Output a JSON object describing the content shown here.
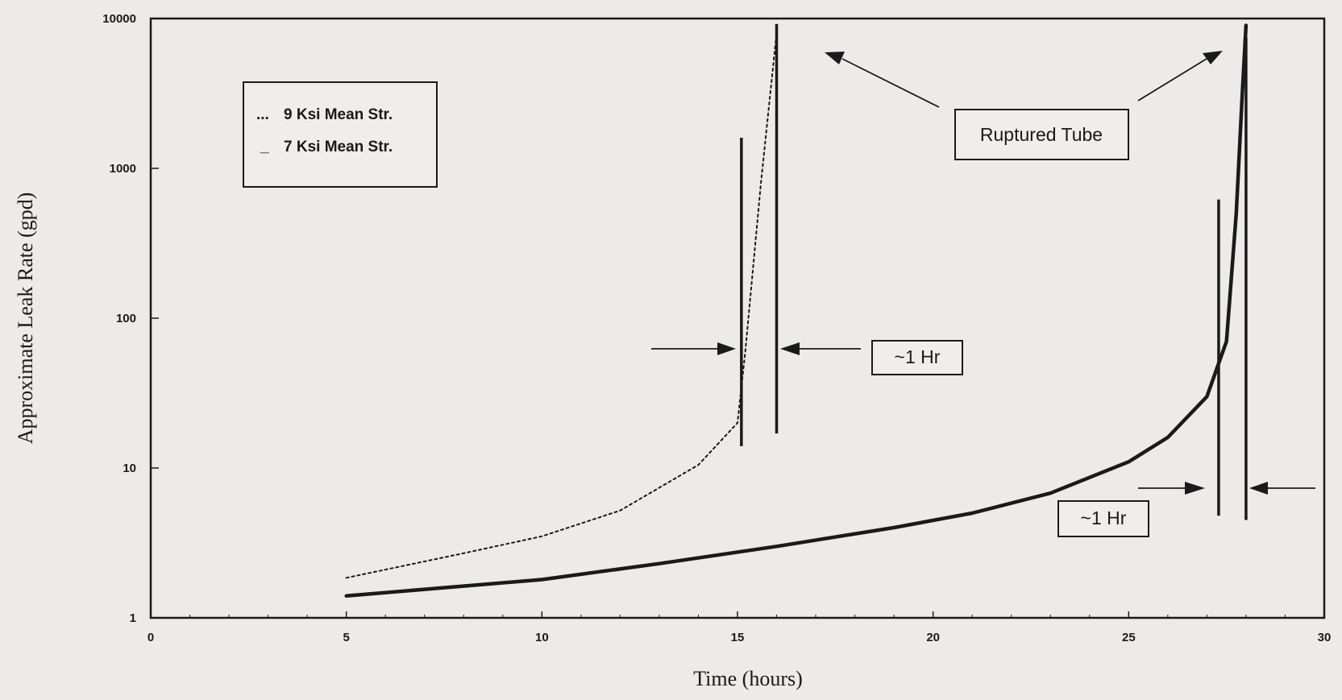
{
  "chart_data": {
    "type": "line",
    "xlabel": "Time (hours)",
    "ylabel": "Approximate Leak Rate (gpd)",
    "xlim": [
      0,
      30
    ],
    "ylim": [
      1,
      10000
    ],
    "y_scale": "log",
    "x_ticks": [
      "0",
      "5",
      "10",
      "15",
      "20",
      "25",
      "30"
    ],
    "y_ticks": [
      "1",
      "10",
      "100",
      "1000",
      "10000"
    ],
    "grid": false,
    "legend_position": "top-left",
    "series": [
      {
        "name": "9 Ksi Mean Str.",
        "style": "dotted",
        "legend_marker": "...",
        "x": [
          5,
          8,
          10,
          12,
          14,
          15,
          15.2,
          15.6,
          16
        ],
        "y": [
          1.85,
          2.7,
          3.5,
          5.2,
          10.5,
          20,
          60,
          800,
          8000
        ]
      },
      {
        "name": "7 Ksi Mean Str.",
        "style": "solid",
        "legend_marker": "_",
        "x": [
          5,
          7,
          10,
          13,
          16,
          19,
          21,
          23,
          25,
          26,
          27,
          27.5,
          27.75,
          27.9,
          28
        ],
        "y": [
          1.4,
          1.55,
          1.8,
          2.3,
          3.0,
          4.0,
          5.0,
          6.8,
          11,
          16,
          30,
          70,
          500,
          3000,
          9000
        ]
      }
    ],
    "vertical_markers": [
      {
        "x": 15.1,
        "y_from": 14,
        "y_to": 1600
      },
      {
        "x": 16.0,
        "y_from": 17,
        "y_to": 9200
      },
      {
        "x": 27.3,
        "y_from": 4.8,
        "y_to": 620
      },
      {
        "x": 28.0,
        "y_from": 4.5,
        "y_to": 7500
      }
    ],
    "annotations": [
      {
        "text": "Ruptured Tube"
      },
      {
        "text": "~1 Hr"
      },
      {
        "text": "~1 Hr"
      }
    ]
  }
}
